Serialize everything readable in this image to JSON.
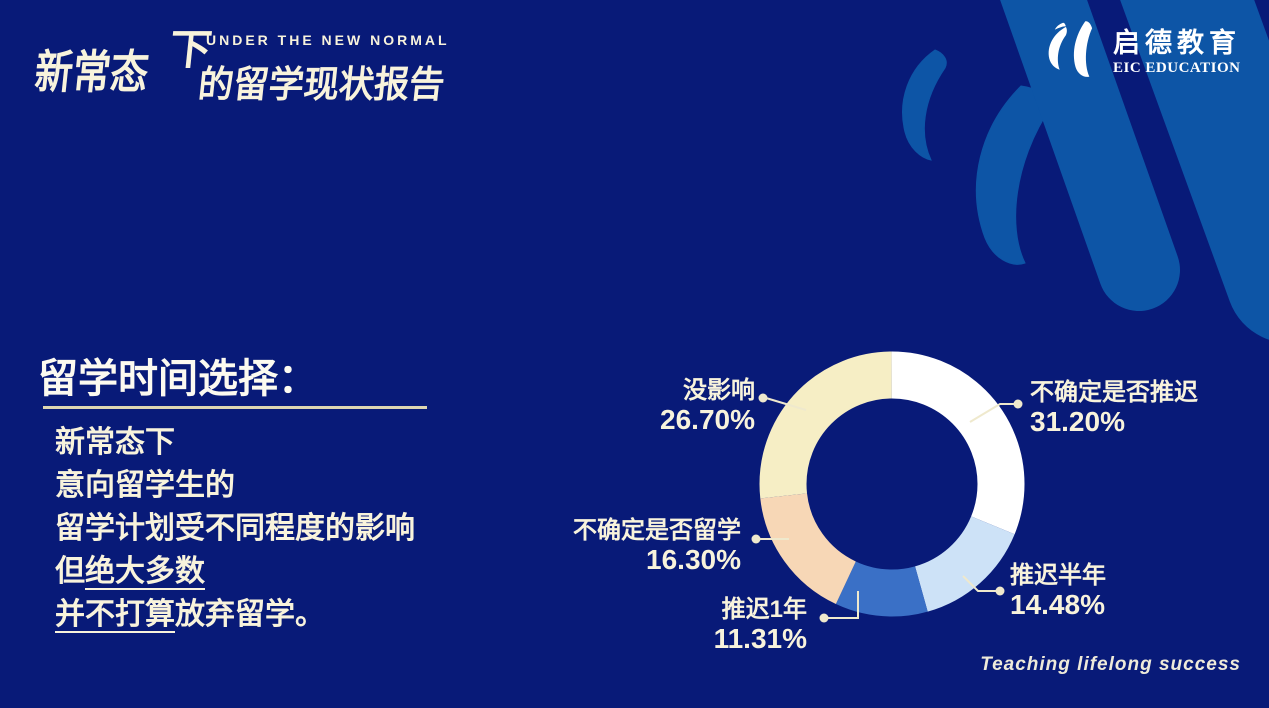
{
  "brand_header": {
    "subtitle_en": "UNDER THE NEW NORMAL",
    "title_zh_main": "新常态",
    "title_zh_raised": "下",
    "title_zh_rest": "的留学现状报告"
  },
  "eic_logo": {
    "icon": "eic-drop-mark-icon",
    "name_zh": "启德教育",
    "name_en": "EIC EDUCATION"
  },
  "content": {
    "heading": "留学时间选择：",
    "line1": "新常态下",
    "line2": "意向留学生的",
    "line3": "留学计划受不同程度的影响",
    "line4_prefix": "但",
    "line4_underlined": "绝大多数",
    "line5_underlined": "并不打算",
    "line5_suffix": "放弃留学。"
  },
  "footer": {
    "tagline": "Teaching lifelong success"
  },
  "colors": {
    "background": "#081a78",
    "motif_blue": "#0d55a6",
    "text_cream": "#f8f3dc",
    "heading_underline": "#ddd6b2",
    "leader_line": "#efe9cd",
    "logo_white": "#ffffff"
  },
  "chart_data": {
    "type": "pie",
    "subtype": "donut",
    "title": "留学时间选择",
    "legend_position": "outside-callouts",
    "start_angle_deg": 0,
    "direction": "clockwise",
    "inner_radius_ratio": 0.65,
    "series": [
      {
        "label": "不确定是否推迟",
        "value": 31.2,
        "display": "31.20%",
        "color": "#ffffff"
      },
      {
        "label": "推迟半年",
        "value": 14.48,
        "display": "14.48%",
        "color": "#cde2f7"
      },
      {
        "label": "推迟1年",
        "value": 11.31,
        "display": "11.31%",
        "color": "#3a70c6"
      },
      {
        "label": "不确定是否留学",
        "value": 16.3,
        "display": "16.30%",
        "color": "#f7d7b6"
      },
      {
        "label": "没影响",
        "value": 26.7,
        "display": "26.70%",
        "color": "#f6eec5"
      }
    ]
  }
}
